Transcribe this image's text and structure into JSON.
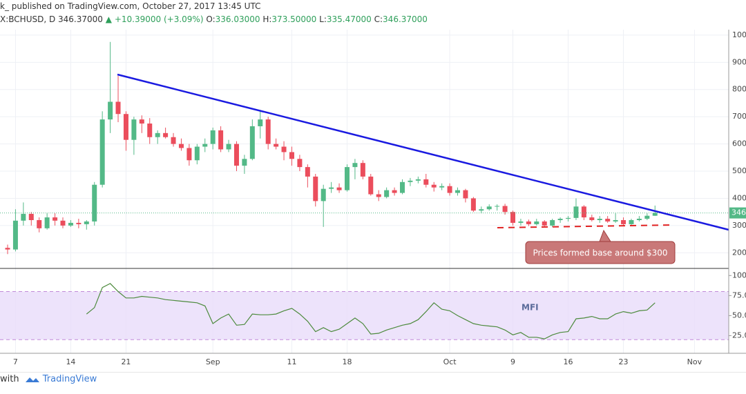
{
  "header": {
    "publisher": "k_ published on TradingView.com, October 27, 2017 13:45 UTC",
    "symbol": "X:BCHUSD, D",
    "price": "346.37000",
    "change": "+10.39000 (+3.09%)",
    "open_label": "O:",
    "open": "336.03000",
    "high_label": "H:",
    "high": "373.50000",
    "low_label": "L:",
    "low": "335.47000",
    "close_label": "C:",
    "close": "346.37000"
  },
  "footer": {
    "prefix": "with",
    "brand": "TradingView"
  },
  "chart_data": [
    {
      "type": "candlestick",
      "annotation": "Prices formed base around $300",
      "up_color": "#53b987",
      "down_color": "#eb4d5c",
      "x": [
        "2017-08-06",
        "2017-08-07",
        "2017-08-08",
        "2017-08-09",
        "2017-08-10",
        "2017-08-11",
        "2017-08-12",
        "2017-08-13",
        "2017-08-14",
        "2017-08-15",
        "2017-08-16",
        "2017-08-17",
        "2017-08-18",
        "2017-08-19",
        "2017-08-20",
        "2017-08-21",
        "2017-08-22",
        "2017-08-23",
        "2017-08-24",
        "2017-08-25",
        "2017-08-26",
        "2017-08-27",
        "2017-08-28",
        "2017-08-29",
        "2017-08-30",
        "2017-08-31",
        "2017-09-01",
        "2017-09-02",
        "2017-09-03",
        "2017-09-04",
        "2017-09-05",
        "2017-09-06",
        "2017-09-07",
        "2017-09-08",
        "2017-09-09",
        "2017-09-10",
        "2017-09-11",
        "2017-09-12",
        "2017-09-13",
        "2017-09-14",
        "2017-09-15",
        "2017-09-16",
        "2017-09-17",
        "2017-09-18",
        "2017-09-19",
        "2017-09-20",
        "2017-09-21",
        "2017-09-22",
        "2017-09-23",
        "2017-09-24",
        "2017-09-25",
        "2017-09-26",
        "2017-09-27",
        "2017-09-28",
        "2017-09-29",
        "2017-09-30",
        "2017-10-01",
        "2017-10-02",
        "2017-10-03",
        "2017-10-04",
        "2017-10-05",
        "2017-10-06",
        "2017-10-07",
        "2017-10-08",
        "2017-10-09",
        "2017-10-10",
        "2017-10-11",
        "2017-10-12",
        "2017-10-13",
        "2017-10-14",
        "2017-10-15",
        "2017-10-16",
        "2017-10-17",
        "2017-10-18",
        "2017-10-19",
        "2017-10-20",
        "2017-10-21",
        "2017-10-22",
        "2017-10-23",
        "2017-10-24",
        "2017-10-25",
        "2017-10-26",
        "2017-10-27"
      ],
      "open": [
        218,
        212,
        318,
        343,
        320,
        290,
        330,
        318,
        300,
        310,
        305,
        315,
        450,
        690,
        755,
        710,
        615,
        690,
        675,
        625,
        640,
        625,
        600,
        585,
        540,
        590,
        600,
        650,
        580,
        600,
        520,
        545,
        665,
        690,
        600,
        590,
        570,
        545,
        515,
        480,
        390,
        435,
        440,
        430,
        515,
        530,
        480,
        415,
        405,
        430,
        420,
        460,
        465,
        470,
        450,
        440,
        445,
        420,
        430,
        400,
        355,
        360,
        370,
        372,
        350,
        310,
        315,
        305,
        315,
        300,
        320,
        325,
        328,
        370,
        330,
        320,
        325,
        315,
        320,
        305,
        320,
        325,
        336.03
      ],
      "high": [
        230,
        360,
        385,
        350,
        330,
        345,
        345,
        330,
        320,
        325,
        320,
        460,
        720,
        975,
        850,
        720,
        700,
        705,
        695,
        650,
        660,
        640,
        620,
        600,
        600,
        620,
        660,
        665,
        615,
        610,
        560,
        690,
        725,
        700,
        620,
        610,
        590,
        560,
        525,
        490,
        450,
        460,
        455,
        525,
        545,
        540,
        490,
        430,
        440,
        440,
        470,
        475,
        480,
        490,
        460,
        455,
        455,
        440,
        435,
        405,
        370,
        378,
        378,
        380,
        355,
        325,
        322,
        325,
        320,
        325,
        330,
        335,
        400,
        375,
        340,
        335,
        335,
        345,
        330,
        325,
        335,
        345,
        373.5
      ],
      "low": [
        195,
        205,
        300,
        300,
        275,
        285,
        300,
        290,
        295,
        290,
        285,
        300,
        440,
        640,
        680,
        575,
        560,
        640,
        600,
        600,
        620,
        590,
        575,
        520,
        525,
        570,
        580,
        570,
        570,
        500,
        490,
        540,
        620,
        580,
        580,
        540,
        520,
        500,
        440,
        370,
        295,
        420,
        420,
        425,
        470,
        470,
        410,
        390,
        400,
        410,
        415,
        445,
        455,
        440,
        425,
        430,
        410,
        410,
        385,
        350,
        345,
        355,
        355,
        340,
        300,
        300,
        298,
        300,
        295,
        295,
        310,
        315,
        320,
        320,
        315,
        310,
        310,
        310,
        300,
        300,
        315,
        320,
        335.47
      ],
      "close": [
        212,
        318,
        343,
        320,
        290,
        330,
        318,
        300,
        310,
        305,
        315,
        450,
        690,
        755,
        710,
        615,
        690,
        675,
        625,
        640,
        625,
        600,
        585,
        540,
        590,
        600,
        650,
        580,
        600,
        520,
        545,
        665,
        690,
        600,
        590,
        570,
        545,
        515,
        480,
        390,
        435,
        440,
        430,
        515,
        530,
        480,
        415,
        405,
        430,
        420,
        460,
        465,
        470,
        450,
        440,
        445,
        420,
        430,
        400,
        355,
        360,
        370,
        372,
        350,
        310,
        315,
        305,
        315,
        300,
        320,
        325,
        328,
        370,
        330,
        320,
        325,
        315,
        320,
        305,
        320,
        325,
        336.03,
        346.37
      ],
      "ylim": [
        145,
        1020
      ],
      "yticks": [
        200,
        300,
        400,
        500,
        600,
        700,
        800,
        900,
        1000
      ],
      "xticks": [
        {
          "value": "2017-08-07",
          "label": "7"
        },
        {
          "value": "2017-08-14",
          "label": "14"
        },
        {
          "value": "2017-08-21",
          "label": "21"
        },
        {
          "value": "2017-09-01",
          "label": "Sep"
        },
        {
          "value": "2017-09-11",
          "label": "11"
        },
        {
          "value": "2017-09-18",
          "label": "18"
        },
        {
          "value": "2017-10-01",
          "label": "Oct"
        },
        {
          "value": "2017-10-09",
          "label": "9"
        },
        {
          "value": "2017-10-16",
          "label": "16"
        },
        {
          "value": "2017-10-23",
          "label": "23"
        },
        {
          "value": "2017-11-01",
          "label": "Nov"
        }
      ],
      "grid": true
    },
    {
      "type": "line",
      "title": "MFI",
      "color": "#4c8a3c",
      "band_color": "#e9dcfa",
      "values": [
        null,
        null,
        null,
        null,
        null,
        null,
        null,
        null,
        null,
        null,
        52,
        60,
        85,
        90,
        80,
        72,
        72,
        74,
        73,
        72,
        70,
        69,
        68,
        67,
        66,
        62,
        40,
        47,
        52,
        38,
        39,
        52,
        51,
        51,
        52,
        56,
        59,
        52,
        43,
        30,
        35,
        30,
        33,
        40,
        47,
        40,
        27,
        28,
        32,
        35,
        38,
        40,
        45,
        55,
        66,
        58,
        56,
        50,
        45,
        40,
        38,
        37,
        36,
        32,
        26,
        29,
        23,
        23,
        21,
        26,
        29,
        30,
        46,
        47,
        49,
        46,
        46,
        52,
        55,
        53,
        56,
        57,
        66
      ],
      "bands": [
        20,
        80
      ],
      "ylim": [
        3,
        108
      ],
      "yticks": [
        100,
        {
          "value": 75,
          "label": "75.00"
        },
        {
          "value": 50,
          "label": "50.00"
        },
        {
          "value": 25,
          "label": "25.00"
        }
      ]
    }
  ]
}
